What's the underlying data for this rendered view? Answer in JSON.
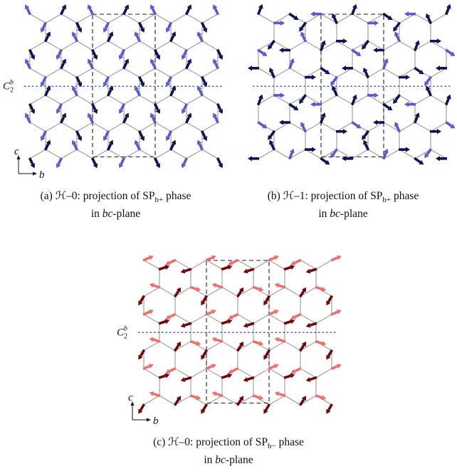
{
  "panels": [
    {
      "id": "a",
      "caption_line1": "(a) ℋ–0: projection of SP",
      "caption_sub": "b+",
      "caption_tail": " phase",
      "caption_line2": "in bc-plane",
      "colors": {
        "primary": "#0c1450",
        "secondary": "#5a5ac8"
      },
      "c2_label": "C",
      "c2_sup": "b",
      "c2_sub": "2",
      "axis_c": "c",
      "axis_b": "b"
    },
    {
      "id": "b",
      "caption_line1": "(b) ℋ–1: projection of SP",
      "caption_sub": "b+",
      "caption_tail": " phase",
      "caption_line2": "in bc-plane",
      "colors": {
        "primary": "#0c1450",
        "secondary": "#5a5ac8"
      }
    },
    {
      "id": "c",
      "caption_line1": "(c) ℋ–0: projection of SP",
      "caption_sub": "b−",
      "caption_tail": " phase",
      "caption_line2": "in bc-plane",
      "colors": {
        "primary": "#6a0a0a",
        "secondary": "#e87070"
      },
      "c2_label": "C",
      "c2_sup": "b",
      "c2_sub": "2",
      "axis_c": "c",
      "axis_b": "b"
    }
  ]
}
